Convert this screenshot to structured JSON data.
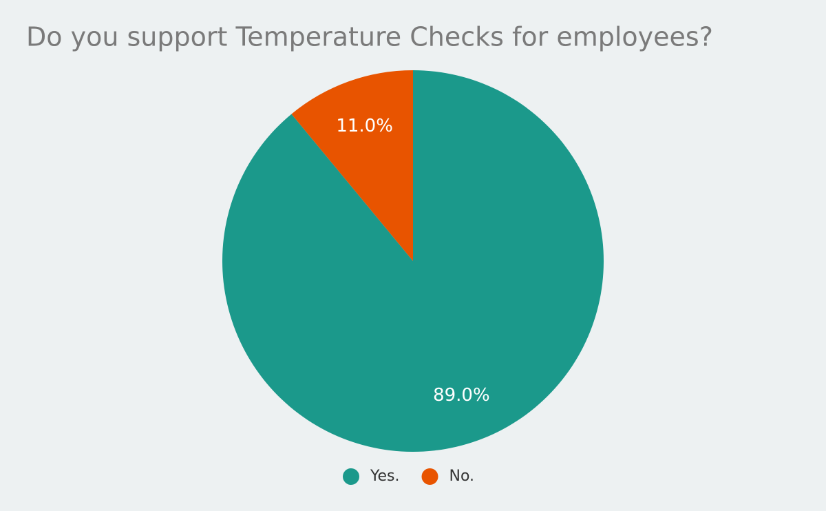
{
  "chart_data": {
    "type": "pie",
    "title": "Do you support Temperature Checks for employees?",
    "categories": [
      "Yes.",
      "No."
    ],
    "values": [
      89,
      11
    ],
    "value_labels": [
      "89.0%",
      "11.0%"
    ],
    "colors": [
      "#1b998b",
      "#e85400"
    ],
    "legend": "bottom"
  }
}
